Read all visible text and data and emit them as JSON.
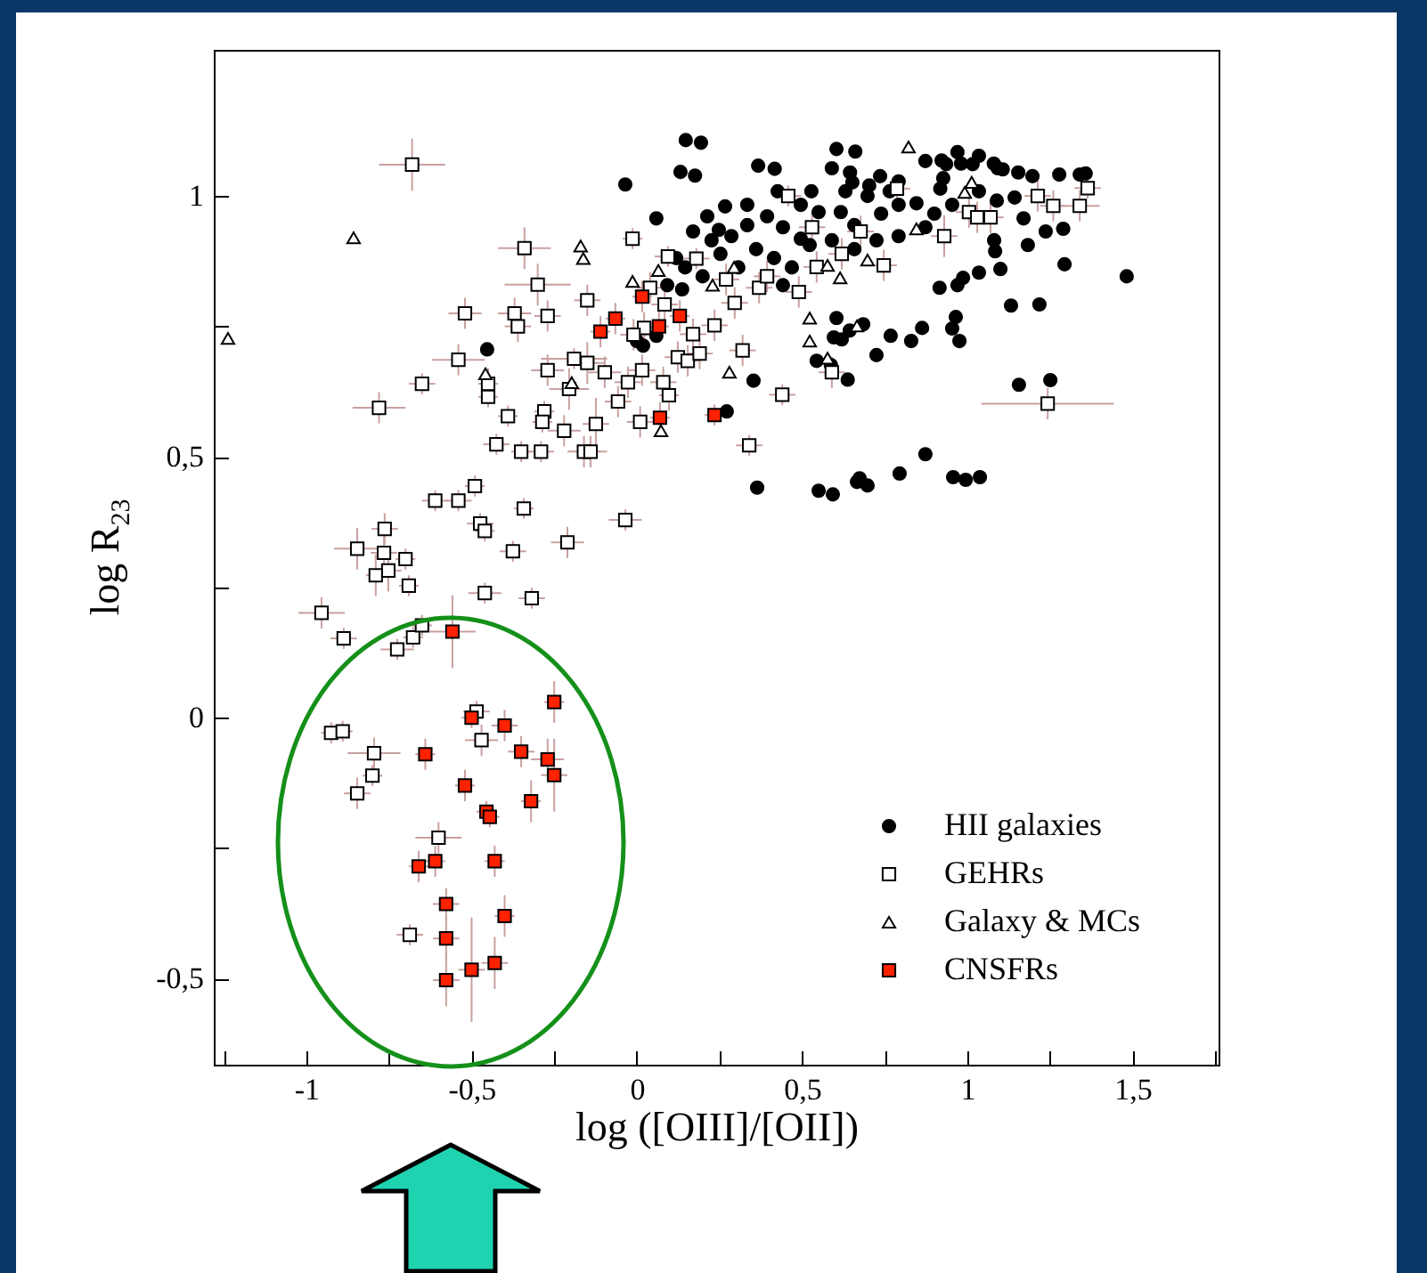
{
  "chart_data": {
    "type": "scatter",
    "xlabel": "log ([OIII]/[OII])",
    "ylabel": "log R$_{23}$",
    "xlim": [
      -1.28,
      1.76
    ],
    "ylim": [
      -0.665,
      1.28
    ],
    "xticks": [
      {
        "value": -1.25,
        "label": null
      },
      -1,
      {
        "value": -0.75,
        "label": null
      },
      {
        "value": -0.5,
        "label": "-0,5"
      },
      {
        "value": -0.25,
        "label": null
      },
      0,
      {
        "value": 0.25,
        "label": null
      },
      {
        "value": 0.5,
        "label": "0,5"
      },
      {
        "value": 0.75,
        "label": null
      },
      1,
      {
        "value": 1.25,
        "label": null
      },
      {
        "value": 1.5,
        "label": "1,5"
      },
      {
        "value": 1.75,
        "label": null
      }
    ],
    "yticks": [
      {
        "value": -0.5,
        "label": "-0,5"
      },
      {
        "value": -0.25,
        "label": null
      },
      0,
      {
        "value": 0.25,
        "label": null
      },
      {
        "value": 0.5,
        "label": "0,5"
      },
      {
        "value": 0.75,
        "label": null
      },
      1
    ],
    "legend": "bottom right",
    "series": [
      {
        "name": "HII galaxies",
        "color": "#000000",
        "marker": "circle",
        "x": [
          -0.035,
          0.132,
          0.148,
          0.059,
          0.367,
          0.604,
          0.59,
          0.652,
          0.736,
          0.873,
          0.922,
          0.97,
          1.016,
          1.092,
          1.197,
          1.278,
          1.34,
          1.358,
          1.482,
          1.294,
          1.218,
          1.132,
          1.251,
          1.156,
          1.183,
          1.237,
          1.29,
          1.081,
          1.084,
          1.1,
          1.035,
          0.987,
          0.97,
          0.916,
          0.965,
          0.976,
          0.954,
          0.863,
          0.83,
          0.768,
          0.725,
          0.685,
          0.644,
          0.604,
          0.596,
          0.62,
          0.544,
          0.587,
          0.638,
          0.353,
          0.272,
          0.364,
          0.55,
          0.593,
          0.666,
          0.674,
          0.698,
          0.795,
          0.873,
          0.957,
          0.995,
          1.038,
          -0.453,
          0.019,
          0,
          0.059,
          0.137,
          0.17,
          0.213,
          0.248,
          0.226,
          0.286,
          0.334,
          0.394,
          0.442,
          0.496,
          0.55,
          0.617,
          0.658,
          0.739,
          0.792,
          0.846,
          0.9,
          0.954,
          1.035,
          1.089,
          1.143,
          1.17,
          0.361,
          0.415,
          0.469,
          0.523,
          0.59,
          0.658,
          0.725,
          0.792,
          0.873,
          0.442,
          0.307,
          0.253,
          0.146,
          0.199,
          0.092,
          0.119,
          0.631,
          0.698,
          0.765,
          0.927,
          0.267,
          0.334,
          0.496,
          0.426,
          0.528,
          0.194,
          0.176,
          0.661,
          0.417,
          0.936,
          0.981,
          1.035,
          1.08,
          1.107,
          1.154,
          0.645,
          0.703,
          0.792,
          0.918
        ],
        "values": [
          1.022,
          1.046,
          1.107,
          0.957,
          1.058,
          1.09,
          1.053,
          1.026,
          1.038,
          1.067,
          1.068,
          1.084,
          1.061,
          1.053,
          1.038,
          1.041,
          1.041,
          1.043,
          0.846,
          0.869,
          0.792,
          0.79,
          0.647,
          0.638,
          0.906,
          0.932,
          0.937,
          0.915,
          0.894,
          0.86,
          0.853,
          0.843,
          0.829,
          0.824,
          0.768,
          0.722,
          0.746,
          0.747,
          0.722,
          0.732,
          0.695,
          0.754,
          0.742,
          0.766,
          0.729,
          0.725,
          0.684,
          0.676,
          0.648,
          0.646,
          0.587,
          0.441,
          0.435,
          0.428,
          0.452,
          0.459,
          0.445,
          0.468,
          0.505,
          0.461,
          0.456,
          0.461,
          0.706,
          0.713,
          0.722,
          0.732,
          0.821,
          0.932,
          0.961,
          0.935,
          0.915,
          0.923,
          0.944,
          0.961,
          0.94,
          0.918,
          0.969,
          0.969,
          0.944,
          0.966,
          0.983,
          0.986,
          0.966,
          0.983,
          1.009,
          0.991,
          0.997,
          0.957,
          0.898,
          0.881,
          0.863,
          0.906,
          0.915,
          0.898,
          0.915,
          0.923,
          0.94,
          0.829,
          0.863,
          0.889,
          0.863,
          0.846,
          0.829,
          0.881,
          1.009,
          1.0,
          1.009,
          1.034,
          0.98,
          0.983,
          0.983,
          1.009,
          1.009,
          1.102,
          1.039,
          1.085,
          1.052,
          1.061,
          1.062,
          1.077,
          1.062,
          1.051,
          1.045,
          1.045,
          1.02,
          1.028,
          1.014
        ]
      },
      {
        "name": "GEHRs",
        "color": "#ffffff",
        "marker": "square",
        "x": [
          -0.68,
          -0.34,
          -0.013,
          -0.3,
          -0.52,
          -0.37,
          -0.36,
          -0.27,
          -0.15,
          -0.54,
          -0.65,
          -0.45,
          -0.45,
          -0.78,
          -0.39,
          -0.425,
          -0.35,
          -0.29,
          -0.28,
          -0.286,
          -0.22,
          -0.27,
          -0.19,
          -0.15,
          -0.097,
          -0.205,
          -0.16,
          -0.14,
          -0.124,
          -0.057,
          -0.027,
          0.01,
          0.016,
          0.08,
          0.097,
          0.124,
          0.154,
          0.19,
          0.17,
          0.084,
          0.022,
          -0.01,
          0.04,
          0.18,
          0.094,
          0.235,
          0.27,
          0.32,
          0.34,
          0.44,
          0.37,
          0.458,
          0.49,
          0.53,
          0.59,
          0.787,
          0.93,
          1.005,
          1.03,
          1.07,
          1.213,
          1.26,
          1.34,
          1.364,
          1.243,
          0.747,
          0.677,
          0.62,
          0.544,
          0.394,
          0.296,
          -0.61,
          -0.54,
          -0.49,
          -0.474,
          -0.46,
          -0.342,
          -0.375,
          -0.21,
          -0.035,
          -0.46,
          -0.318,
          -0.763,
          -0.846,
          -0.765,
          -0.7,
          -0.752,
          -0.79,
          -0.69,
          -0.954,
          -0.887,
          -0.725,
          -0.677,
          -0.65,
          -0.925,
          -0.89,
          -0.795,
          -0.8,
          -0.846,
          -0.485,
          -0.47,
          -0.6,
          -0.687
        ],
        "values": [
          1.06,
          0.9,
          0.918,
          0.83,
          0.775,
          0.775,
          0.75,
          0.77,
          0.8,
          0.686,
          0.64,
          0.64,
          0.615,
          0.594,
          0.578,
          0.524,
          0.51,
          0.51,
          0.587,
          0.567,
          0.55,
          0.666,
          0.688,
          0.68,
          0.662,
          0.63,
          0.51,
          0.51,
          0.563,
          0.606,
          0.643,
          0.567,
          0.666,
          0.643,
          0.618,
          0.691,
          0.684,
          0.698,
          0.735,
          0.792,
          0.747,
          0.734,
          0.824,
          0.88,
          0.884,
          0.752,
          0.84,
          0.704,
          0.522,
          0.619,
          0.824,
          1.0,
          0.816,
          0.94,
          0.662,
          1.014,
          0.923,
          0.969,
          0.959,
          0.959,
          1.0,
          0.981,
          0.981,
          1.015,
          0.602,
          0.867,
          0.932,
          0.889,
          0.864,
          0.846,
          0.795,
          0.416,
          0.416,
          0.444,
          0.372,
          0.358,
          0.401,
          0.319,
          0.336,
          0.379,
          0.239,
          0.229,
          0.362,
          0.324,
          0.316,
          0.304,
          0.282,
          0.273,
          0.253,
          0.201,
          0.152,
          0.131,
          0.154,
          0.177,
          -0.029,
          -0.026,
          -0.068,
          -0.111,
          -0.145,
          0.012,
          -0.043,
          -0.23,
          -0.416
        ],
        "errors": [
          0.05,
          0.04,
          0.02,
          0.04,
          0.03,
          0.03,
          0.03,
          0.03,
          0.03,
          0.03,
          0.02,
          0.03,
          0.02,
          0.03,
          0.02,
          0.02,
          0.02,
          0.02,
          0.02,
          0.02,
          0.03,
          0.03,
          0.02,
          0.04,
          0.03,
          0.04,
          0.03,
          0.03,
          0.05,
          0.03,
          0.03,
          0.03,
          0.03,
          0.03,
          0.03,
          0.03,
          0.03,
          0.03,
          0.03,
          0.03,
          0.03,
          0.03,
          0.03,
          0.02,
          0.02,
          0.03,
          0.03,
          0.03,
          0.02,
          0.02,
          0.03,
          0.02,
          0.03,
          0.03,
          0.03,
          0.02,
          0.04,
          0.03,
          0.03,
          0.03,
          0.03,
          0.03,
          0.03,
          0.02,
          0.03,
          0.03,
          0.03,
          0.03,
          0.03,
          0.03,
          0.03,
          0.02,
          0.02,
          0.02,
          0.02,
          0.02,
          0.02,
          0.02,
          0.03,
          0.02,
          0.02,
          0.02,
          0.03,
          0.04,
          0.04,
          0.02,
          0.04,
          0.04,
          0.02,
          0.03,
          0.02,
          0.02,
          0.02,
          0.02,
          0.02,
          0.02,
          0.03,
          0.02,
          0.03,
          0.02,
          0.03,
          0.03,
          0.02
        ],
        "xerrors": [
          0.1,
          0.08,
          0.03,
          0.1,
          0.05,
          0.05,
          0.04,
          0.04,
          0.04,
          0.08,
          0.04,
          0.03,
          0.03,
          0.08,
          0.03,
          0.04,
          0.03,
          0.04,
          0.03,
          0.03,
          0.05,
          0.05,
          0.1,
          0.05,
          0.05,
          0.06,
          0.05,
          0.05,
          0.04,
          0.04,
          0.04,
          0.04,
          0.04,
          0.04,
          0.03,
          0.04,
          0.04,
          0.04,
          0.04,
          0.04,
          0.04,
          0.04,
          0.04,
          0.04,
          0.04,
          0.04,
          0.04,
          0.04,
          0.04,
          0.04,
          0.04,
          0.04,
          0.04,
          0.04,
          0.04,
          0.04,
          0.04,
          0.04,
          0.04,
          0.04,
          0.04,
          0.04,
          0.06,
          0.04,
          0.2,
          0.04,
          0.04,
          0.04,
          0.04,
          0.04,
          0.04,
          0.04,
          0.04,
          0.03,
          0.04,
          0.03,
          0.03,
          0.04,
          0.05,
          0.05,
          0.05,
          0.04,
          0.04,
          0.07,
          0.04,
          0.03,
          0.04,
          0.03,
          0.03,
          0.07,
          0.04,
          0.05,
          0.03,
          0.03,
          0.03,
          0.03,
          0.08,
          0.03,
          0.04,
          0.04,
          0.05,
          0.07,
          0.04
        ]
      },
      {
        "name": "Galaxy & MCs",
        "color": "#ffffff",
        "marker": "triangle",
        "x": [
          -1.237,
          -0.857,
          -0.17,
          -0.162,
          -0.458,
          -0.197,
          0.073,
          -0.013,
          0.065,
          0.229,
          0.28,
          0.523,
          0.523,
          0.577,
          0.615,
          0.822,
          0.992,
          0.846,
          0.698,
          0.577,
          0.294,
          0.666,
          1.013
        ],
        "values": [
          0.727,
          0.92,
          0.904,
          0.88,
          0.659,
          0.642,
          0.55,
          0.836,
          0.857,
          0.829,
          0.662,
          0.766,
          0.722,
          0.689,
          0.843,
          1.094,
          1.007,
          0.937,
          0.877,
          0.867,
          0.863,
          0.751,
          1.026
        ]
      },
      {
        "name": "CNSFRs",
        "color": "#ff2200",
        "marker": "square",
        "x": [
          -0.558,
          -0.5,
          -0.4,
          -0.25,
          -0.64,
          -0.35,
          -0.27,
          -0.25,
          -0.52,
          -0.455,
          -0.445,
          -0.32,
          -0.66,
          -0.61,
          -0.43,
          -0.577,
          -0.4,
          -0.577,
          -0.43,
          -0.5,
          -0.577,
          -0.11,
          -0.065,
          0.016,
          0.067,
          0.13,
          0.07,
          0.235
        ],
        "values": [
          0.165,
          0.0,
          -0.015,
          0.03,
          -0.07,
          -0.065,
          -0.08,
          -0.11,
          -0.13,
          -0.18,
          -0.19,
          -0.16,
          -0.285,
          -0.275,
          -0.275,
          -0.357,
          -0.38,
          -0.423,
          -0.47,
          -0.483,
          -0.503,
          0.74,
          0.765,
          0.807,
          0.75,
          0.77,
          0.575,
          0.58
        ],
        "errors": [
          0.07,
          0.02,
          0.03,
          0.04,
          0.03,
          0.03,
          0.04,
          0.07,
          0.03,
          0.02,
          0.02,
          0.04,
          0.03,
          0.03,
          0.03,
          0.03,
          0.04,
          0.04,
          0.05,
          0.1,
          0.05,
          0.03,
          0.03,
          0.03,
          0.03,
          0.03,
          0.03,
          0.02
        ],
        "xerrors": [
          0.07,
          0.03,
          0.04,
          0.03,
          0.03,
          0.04,
          0.05,
          0.04,
          0.03,
          0.03,
          0.03,
          0.03,
          0.03,
          0.03,
          0.03,
          0.04,
          0.03,
          0.04,
          0.04,
          0.04,
          0.04,
          0.03,
          0.03,
          0.03,
          0.03,
          0.03,
          0.03,
          0.03
        ]
      }
    ]
  }
}
